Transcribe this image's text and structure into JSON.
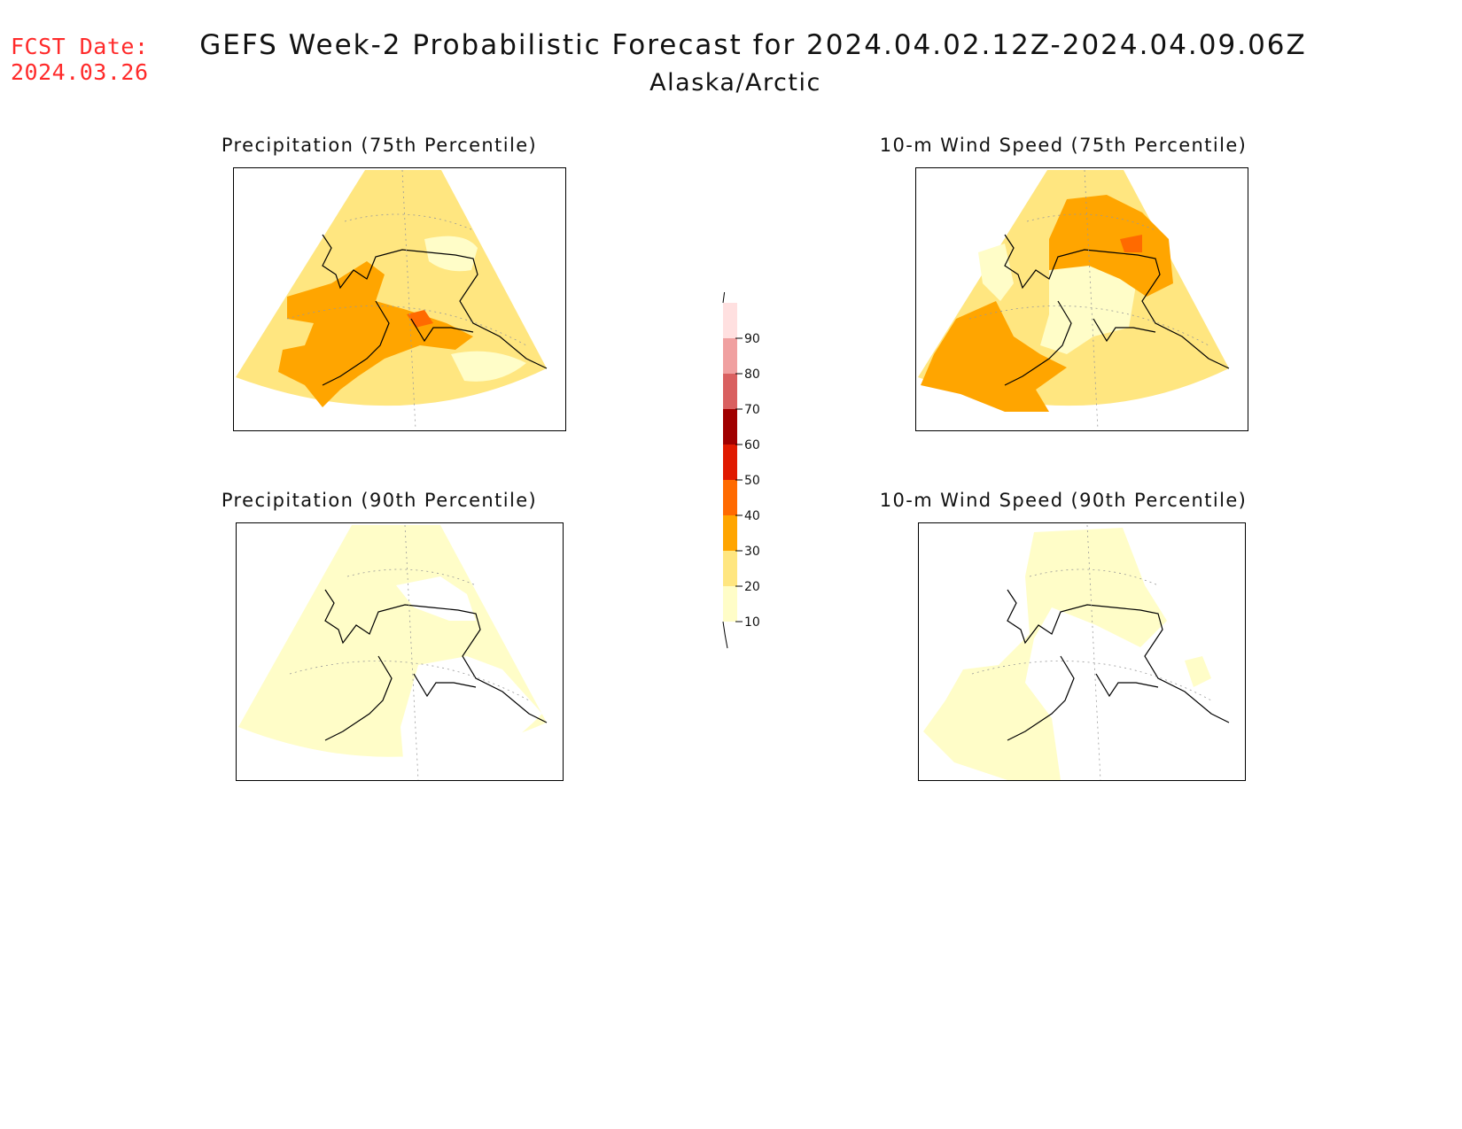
{
  "header": {
    "fcst_label": "FCST Date:",
    "fcst_date": "2024.03.26",
    "title": "GEFS Week-2 Probabilistic Forecast for 2024.04.02.12Z-2024.04.09.06Z",
    "subtitle": "Alaska/Arctic"
  },
  "panels": [
    {
      "id": "precip75",
      "title": "Precipitation (75th Percentile)"
    },
    {
      "id": "wind75",
      "title": "10-m Wind Speed (75th Percentile)"
    },
    {
      "id": "precip90",
      "title": "Precipitation (90th Percentile)"
    },
    {
      "id": "wind90",
      "title": "10-m Wind Speed (90th Percentile)"
    }
  ],
  "colorbar": {
    "levels": [
      10,
      20,
      30,
      40,
      50,
      60,
      70,
      80,
      90
    ],
    "colors": [
      "#fffdc8",
      "#ffe680",
      "#ffa500",
      "#ff6a00",
      "#e01a00",
      "#a00000",
      "#d96060",
      "#f0a0a0",
      "#ffe0e0"
    ],
    "labels": [
      "10",
      "20",
      "30",
      "40",
      "50",
      "60",
      "70",
      "80",
      "90"
    ]
  }
}
